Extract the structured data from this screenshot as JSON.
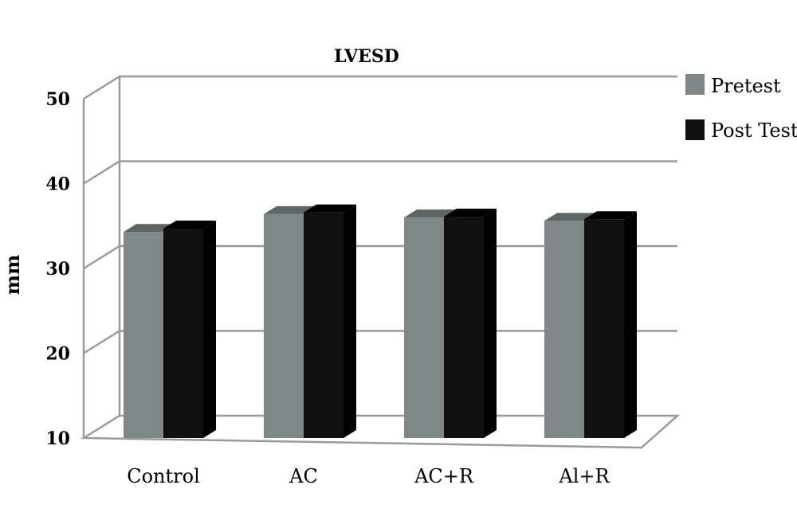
{
  "chart_data": {
    "type": "bar",
    "title": "LVESD",
    "ylabel": "mm",
    "xlabel": "",
    "ylim": [
      10,
      50
    ],
    "yticks": [
      10,
      20,
      30,
      40,
      50
    ],
    "categories": [
      "Control",
      "AC",
      "AC+R",
      "Al+R"
    ],
    "series": [
      {
        "name": "Pretest",
        "color": "#7f8787",
        "topColor": "#5f6565",
        "values": [
          34.3,
          36.4,
          36.0,
          35.6
        ]
      },
      {
        "name": "Post Test",
        "color": "#111111",
        "topColor": "#000000",
        "values": [
          34.7,
          36.6,
          36.1,
          35.8
        ]
      }
    ],
    "grid": true,
    "legend": "top-right",
    "style": "3d"
  }
}
